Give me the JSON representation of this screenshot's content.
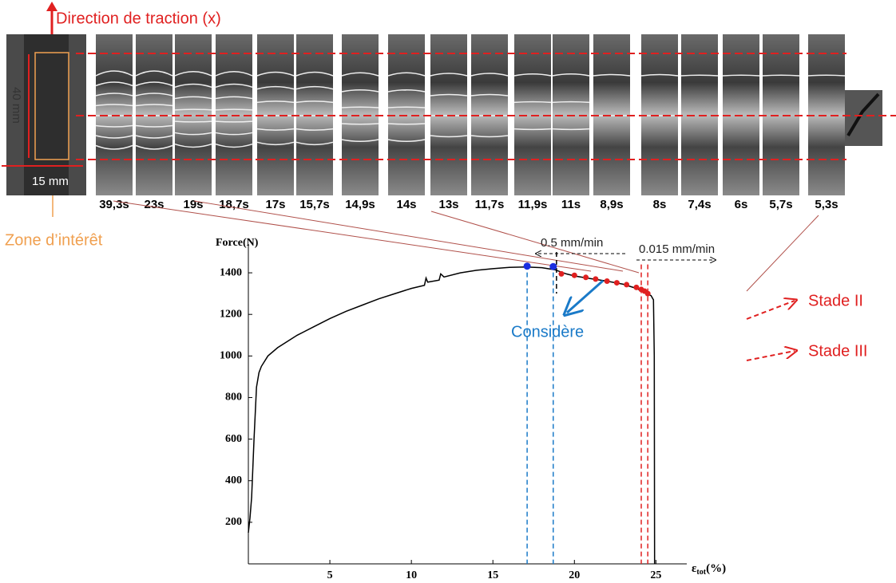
{
  "chart_data": {
    "type": "line",
    "ylabel": "Force(N)",
    "xlabel": "ε",
    "xlabel_sub": "tot",
    "xlabel_unit": "(%)",
    "xlim": [
      0,
      26.5
    ],
    "ylim": [
      0,
      1500
    ],
    "xticks": [
      5,
      10,
      15,
      20,
      25
    ],
    "yticks": [
      200,
      400,
      600,
      800,
      1000,
      1200,
      1400
    ],
    "color": "#000000",
    "x": [
      0,
      0.1,
      0.2,
      0.35,
      0.5,
      0.65,
      0.8,
      1.2,
      1.8,
      3,
      4,
      5,
      6,
      7,
      8,
      9,
      10,
      10.8,
      10.9,
      11,
      11.7,
      11.8,
      12,
      13,
      14,
      15,
      16,
      17,
      18,
      18.8,
      19.5,
      20,
      21,
      22,
      23,
      23.8,
      24.3,
      24.7,
      24.85,
      24.9,
      24.92
    ],
    "y": [
      150,
      220,
      320,
      600,
      850,
      920,
      950,
      1000,
      1040,
      1100,
      1140,
      1180,
      1215,
      1245,
      1275,
      1300,
      1325,
      1340,
      1375,
      1355,
      1365,
      1395,
      1380,
      1400,
      1412,
      1420,
      1426,
      1428,
      1425,
      1415,
      1395,
      1385,
      1372,
      1360,
      1345,
      1325,
      1305,
      1290,
      1270,
      1000,
      0
    ],
    "points": [
      {
        "color": "#1a2ee0",
        "x": [
          17.1,
          18.7
        ],
        "y": [
          1432,
          1430
        ]
      },
      {
        "color": "#e02020",
        "x": [
          19.2,
          20,
          20.7,
          21.3,
          22,
          22.6,
          23.2,
          23.8,
          24.1,
          24.3,
          24.5
        ],
        "y": [
          1395,
          1388,
          1378,
          1370,
          1360,
          1352,
          1343,
          1330,
          1320,
          1312,
          1300
        ]
      }
    ],
    "vlines": [
      {
        "x": 17.1,
        "color": "#1a7ac8"
      },
      {
        "x": 18.7,
        "color": "#1a7ac8"
      },
      {
        "x": 24.1,
        "color": "#e02020"
      },
      {
        "x": 24.5,
        "color": "#e02020"
      },
      {
        "x": 18.9,
        "color": "#000000"
      }
    ],
    "annotations": {
      "rate1": "0.5 mm/min",
      "rate2": "0.015 mm/min",
      "considere": "Considère",
      "stade2": "Stade II",
      "stade3": "Stade III"
    }
  },
  "figure": {
    "direction": "Direction de traction (x)",
    "length": "40 mm",
    "width": "15 mm",
    "zone": "Zone d’intérêt",
    "frame_labels": [
      "39,3s",
      "23s",
      "19s",
      "18,7s",
      "17s",
      "15,7s",
      "14,9s",
      "14s",
      "13s",
      "11,7s",
      "11,9s",
      "11s",
      "8,9s",
      "8s",
      "7,4s",
      "6s",
      "5,7s",
      "5,3s"
    ]
  }
}
